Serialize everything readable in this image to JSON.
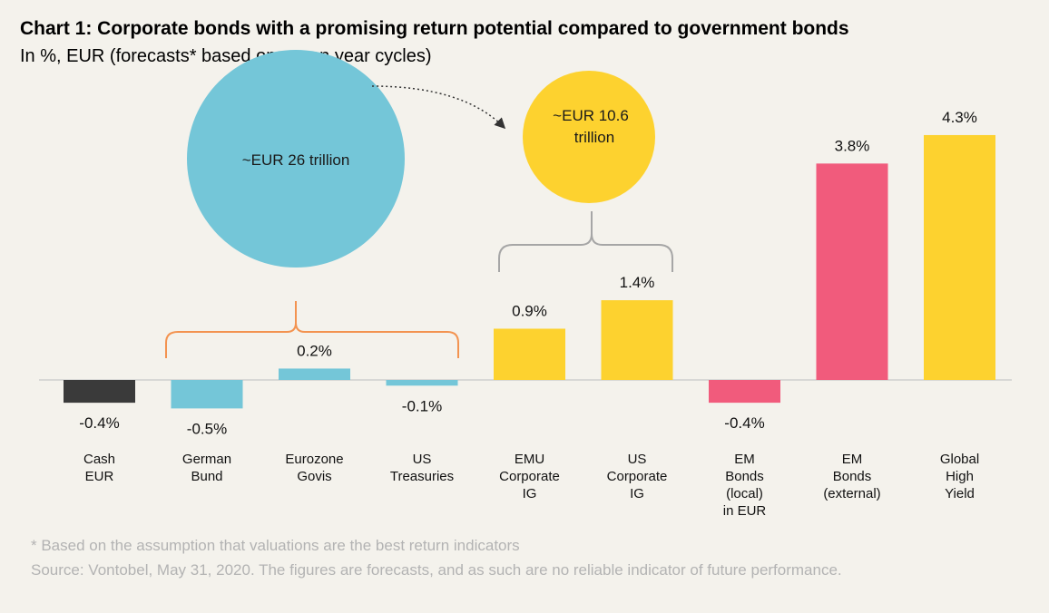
{
  "chart_data": {
    "type": "bar",
    "title": "Chart 1: Corporate bonds with a promising return potential compared to government bonds",
    "subtitle": "In %, EUR (forecasts* based on seven year cycles)",
    "categories": [
      [
        "Cash",
        "EUR"
      ],
      [
        "German",
        "Bund"
      ],
      [
        "Eurozone",
        "Govis"
      ],
      [
        "US",
        "Treasuries"
      ],
      [
        "EMU",
        "Corporate",
        "IG"
      ],
      [
        "US",
        "Corporate",
        "IG"
      ],
      [
        "EM",
        "Bonds",
        "(local)",
        "in EUR"
      ],
      [
        "EM",
        "Bonds",
        "(external)"
      ],
      [
        "Global",
        "High",
        "Yield"
      ]
    ],
    "values": [
      -0.4,
      -0.5,
      0.2,
      -0.1,
      0.9,
      1.4,
      -0.4,
      3.8,
      4.3
    ],
    "value_labels": [
      "-0.4%",
      "-0.5%",
      "0.2%",
      "-0.1%",
      "0.9%",
      "1.4%",
      "-0.4%",
      "3.8%",
      "4.3%"
    ],
    "colors": [
      "#3a3a3a",
      "#74c6d8",
      "#74c6d8",
      "#74c6d8",
      "#fdd22f",
      "#fdd22f",
      "#f15b7c",
      "#f15b7c",
      "#fdd22f"
    ],
    "ylim": [
      -0.6,
      4.5
    ],
    "xlabel": "",
    "ylabel": "",
    "annotations": {
      "govt_bubble": {
        "text": "~EUR 26 trillion",
        "color": "#74c6d8",
        "bracket_color": "#f39350"
      },
      "corp_bubble": {
        "text_lines": [
          "~EUR 10.6",
          "trillion"
        ],
        "color": "#fdd22f",
        "bracket_color": "#a6a6a6"
      },
      "arrow_color": "#333333"
    }
  },
  "footnote": "* Based on the assumption that valuations are the best return indicators",
  "source": "Source: Vontobel, May 31, 2020. The figures are forecasts, and as such are no reliable indicator of future performance."
}
